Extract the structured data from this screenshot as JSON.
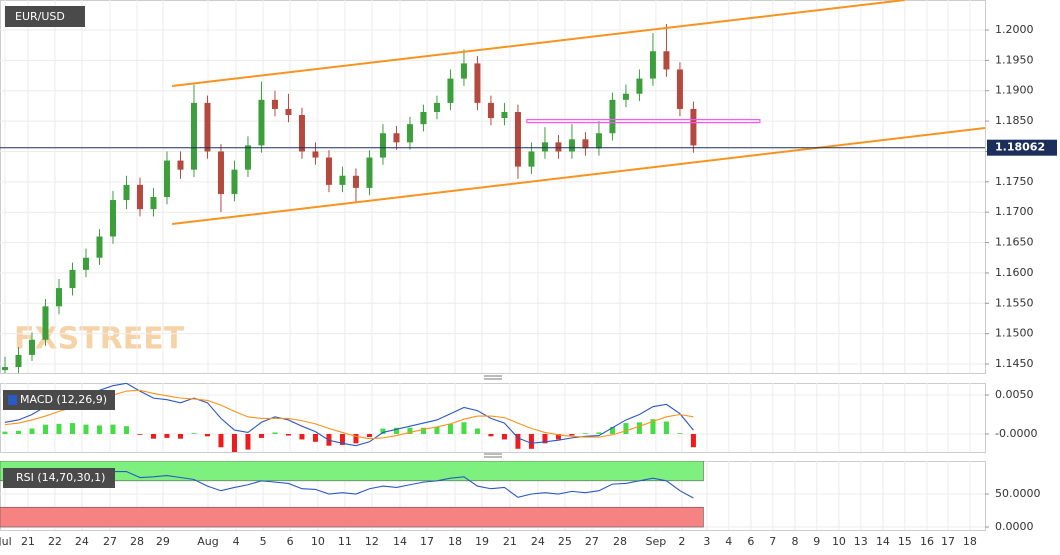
{
  "watermark": "FXSTREET",
  "chart_data": [
    {
      "type": "candlestick",
      "title": "EUR/USD",
      "x": [
        0,
        0.5,
        1,
        1.5,
        2,
        2.5,
        3,
        3.5,
        4,
        4.5,
        5,
        5.5,
        6,
        6.5,
        7,
        7.5,
        8,
        8.5,
        9,
        9.5,
        10,
        10.5,
        11,
        11.5,
        12,
        12.5,
        13,
        13.5,
        14,
        14.5,
        15,
        15.5,
        16,
        16.5,
        17,
        17.5,
        18,
        18.5,
        19,
        19.5,
        20,
        20.5,
        21,
        21.5,
        22,
        22.5,
        23,
        23.5,
        24,
        24.5,
        25,
        25.5
      ],
      "open": [
        1.144,
        1.1445,
        1.1465,
        1.149,
        1.1545,
        1.1575,
        1.1605,
        1.1625,
        1.166,
        1.172,
        1.1745,
        1.1705,
        1.1725,
        1.1785,
        1.177,
        1.188,
        1.18,
        1.173,
        1.177,
        1.181,
        1.1885,
        1.187,
        1.186,
        1.18,
        1.179,
        1.1745,
        1.176,
        1.174,
        1.179,
        1.183,
        1.1815,
        1.1845,
        1.1865,
        1.188,
        1.192,
        1.1945,
        1.188,
        1.1855,
        1.1865,
        1.1775,
        1.18,
        1.1815,
        1.18,
        1.182,
        1.1805,
        1.183,
        1.1885,
        1.1895,
        1.192,
        1.1965,
        1.1935,
        1.187
      ],
      "high": [
        1.1462,
        1.1478,
        1.1502,
        1.1557,
        1.159,
        1.1617,
        1.164,
        1.1672,
        1.1735,
        1.176,
        1.1757,
        1.174,
        1.18,
        1.18,
        1.191,
        1.1892,
        1.1812,
        1.1785,
        1.1825,
        1.1915,
        1.19,
        1.1895,
        1.1872,
        1.1815,
        1.1802,
        1.1775,
        1.1772,
        1.1802,
        1.1845,
        1.1842,
        1.1857,
        1.1877,
        1.1892,
        1.1935,
        1.1968,
        1.1957,
        1.1892,
        1.188,
        1.1877,
        1.1815,
        1.184,
        1.1827,
        1.1845,
        1.1832,
        1.185,
        1.1897,
        1.191,
        1.1935,
        1.1995,
        1.201,
        1.1947,
        1.1882
      ],
      "low": [
        1.143,
        1.1435,
        1.1455,
        1.148,
        1.1532,
        1.1563,
        1.1593,
        1.1613,
        1.1648,
        1.1705,
        1.1693,
        1.1693,
        1.1713,
        1.1755,
        1.1758,
        1.1788,
        1.17,
        1.1718,
        1.1758,
        1.1798,
        1.1858,
        1.1848,
        1.1788,
        1.1778,
        1.1733,
        1.1733,
        1.1715,
        1.1728,
        1.1778,
        1.1803,
        1.1803,
        1.1833,
        1.1853,
        1.1868,
        1.1908,
        1.1868,
        1.1843,
        1.1843,
        1.1755,
        1.1763,
        1.1788,
        1.1788,
        1.1788,
        1.1793,
        1.1793,
        1.1818,
        1.1873,
        1.1883,
        1.1908,
        1.1923,
        1.1858,
        1.1798
      ],
      "close": [
        1.1445,
        1.1465,
        1.149,
        1.1545,
        1.1575,
        1.1605,
        1.1625,
        1.166,
        1.172,
        1.1745,
        1.1705,
        1.1725,
        1.1785,
        1.177,
        1.188,
        1.18,
        1.173,
        1.177,
        1.181,
        1.1885,
        1.187,
        1.186,
        1.18,
        1.179,
        1.1745,
        1.176,
        1.174,
        1.179,
        1.183,
        1.1815,
        1.1845,
        1.1865,
        1.188,
        1.192,
        1.1945,
        1.188,
        1.1855,
        1.1865,
        1.1775,
        1.18,
        1.1815,
        1.18,
        1.182,
        1.1805,
        1.183,
        1.1885,
        1.1895,
        1.192,
        1.1965,
        1.1935,
        1.187,
        1.181
      ],
      "up_color": "#3c9f3c",
      "down_color": "#b5493f",
      "xlim": [
        -0.185,
        36.3
      ],
      "ylim": [
        1.14352,
        1.20494
      ],
      "yticks": [
        {
          "value": 1.2,
          "label": "1.2000"
        },
        {
          "value": 1.195,
          "label": "1.1950"
        },
        {
          "value": 1.19,
          "label": "1.1900"
        },
        {
          "value": 1.185,
          "label": "1.1850"
        },
        {
          "value": 1.18,
          "label": "1.1800"
        },
        {
          "value": 1.175,
          "label": "1.1750"
        },
        {
          "value": 1.17,
          "label": "1.1700"
        },
        {
          "value": 1.165,
          "label": "1.1650"
        },
        {
          "value": 1.16,
          "label": "1.1600"
        },
        {
          "value": 1.155,
          "label": "1.1550"
        },
        {
          "value": 1.15,
          "label": "1.1500"
        },
        {
          "value": 1.145,
          "label": "1.1450"
        }
      ],
      "grid": true,
      "trendlines": [
        {
          "color": "#f7931e",
          "x": [
            6.19,
            33.33
          ],
          "y": [
            1.19078,
            1.20494
          ]
        },
        {
          "color": "#f7931e",
          "x": [
            6.19,
            36.3
          ],
          "y": [
            1.16805,
            1.18386
          ]
        }
      ],
      "zone": {
        "color": "#ff55ff",
        "x": [
          19.33,
          27.96
        ],
        "y": 1.185
      },
      "last_price": {
        "value": 1.18062,
        "label": "1.18062",
        "color": "#1c2e5a"
      }
    },
    {
      "type": "macd",
      "title": "MACD (12,26,9)",
      "x": [
        0,
        0.5,
        1,
        1.5,
        2,
        2.5,
        3,
        3.5,
        4,
        4.5,
        5,
        5.5,
        6,
        6.5,
        7,
        7.5,
        8,
        8.5,
        9,
        9.5,
        10,
        10.5,
        11,
        11.5,
        12,
        12.5,
        13,
        13.5,
        14,
        14.5,
        15,
        15.5,
        16,
        16.5,
        17,
        17.5,
        18,
        18.5,
        19,
        19.5,
        20,
        20.5,
        21,
        21.5,
        22,
        22.5,
        23,
        23.5,
        24,
        24.5,
        25,
        25.5
      ],
      "series": [
        {
          "color": "#2b59c3",
          "values": [
            0.0015,
            0.0018,
            0.0025,
            0.0035,
            0.0042,
            0.0048,
            0.0052,
            0.0056,
            0.0062,
            0.0065,
            0.0055,
            0.0046,
            0.0044,
            0.004,
            0.0046,
            0.004,
            0.002,
            0.0005,
            0.0002,
            0.0015,
            0.0022,
            0.0018,
            0.001,
            0.0003,
            -0.0008,
            -0.0012,
            -0.0015,
            -0.001,
            0.0002,
            0.0006,
            0.001,
            0.0014,
            0.0018,
            0.0026,
            0.0034,
            0.003,
            0.002,
            0.0014,
            -0.0005,
            -0.0012,
            -0.001,
            -0.0008,
            -0.0005,
            -0.0003,
            -0.0002,
            0.0008,
            0.0018,
            0.0025,
            0.0035,
            0.0038,
            0.0026,
            0.0005
          ]
        },
        {
          "color": "#f7931e",
          "values": [
            0.0012,
            0.0014,
            0.0018,
            0.0023,
            0.0029,
            0.0034,
            0.004,
            0.0045,
            0.005,
            0.0055,
            0.0056,
            0.0052,
            0.0049,
            0.0046,
            0.0045,
            0.0043,
            0.0037,
            0.0029,
            0.0022,
            0.002,
            0.002,
            0.002,
            0.0017,
            0.0013,
            0.0007,
            0.0002,
            -0.0003,
            -0.0006,
            -0.0005,
            -0.0002,
            0.0002,
            0.0006,
            0.0009,
            0.0013,
            0.0019,
            0.0023,
            0.0023,
            0.0021,
            0.0014,
            0.0007,
            0.0002,
            -0.0001,
            -0.0003,
            -0.0004,
            -0.0004,
            -0.0001,
            0.0004,
            0.001,
            0.0016,
            0.0022,
            0.0025,
            0.0022
          ]
        }
      ],
      "histogram": [
        0.0003,
        0.0004,
        0.0007,
        0.0012,
        0.0013,
        0.0014,
        0.0012,
        0.0011,
        0.0012,
        0.001,
        -0.0001,
        -0.0006,
        -0.0005,
        -0.0006,
        0.0001,
        -0.0003,
        -0.0017,
        -0.0024,
        -0.002,
        -0.0005,
        0.0002,
        -0.0002,
        -0.0007,
        -0.001,
        -0.0015,
        -0.0014,
        -0.0012,
        -0.0004,
        0.0007,
        0.0008,
        0.0008,
        0.0008,
        0.0009,
        0.0013,
        0.0015,
        0.0007,
        -0.0003,
        -0.0007,
        -0.0019,
        -0.0019,
        -0.0012,
        -0.0007,
        -0.0002,
        0.0001,
        0.0002,
        0.0009,
        0.0014,
        0.0015,
        0.0019,
        0.0016,
        0.0001,
        -0.0017
      ],
      "histogram_colors": [
        "#44dd44",
        "#ee1c1c"
      ],
      "xlim": [
        -0.185,
        36.3
      ],
      "ylim": [
        -0.00231,
        0.00654
      ],
      "yticks": [
        {
          "value": 0.005,
          "label": "0.0050"
        },
        {
          "value": 0,
          "label": "-0.0000"
        }
      ],
      "grid": true
    },
    {
      "type": "rsi",
      "title": "RSI (14,70,30,1)",
      "x": [
        0,
        0.5,
        1,
        1.5,
        2,
        2.5,
        3,
        3.5,
        4,
        4.5,
        5,
        5.5,
        6,
        6.5,
        7,
        7.5,
        8,
        8.5,
        9,
        9.5,
        10,
        10.5,
        11,
        11.5,
        12,
        12.5,
        13,
        13.5,
        14,
        14.5,
        15,
        15.5,
        16,
        16.5,
        17,
        17.5,
        18,
        18.5,
        19,
        19.5,
        20,
        20.5,
        21,
        21.5,
        22,
        22.5,
        23,
        23.5,
        24,
        24.5,
        25,
        25.5
      ],
      "series": [
        {
          "color": "#2b59c3",
          "values": [
            70,
            72,
            74,
            78,
            78,
            80,
            80,
            82,
            84,
            84,
            75,
            76,
            78,
            75,
            72,
            62,
            55,
            60,
            64,
            70,
            68,
            66,
            58,
            57,
            50,
            52,
            50,
            58,
            62,
            60,
            64,
            68,
            70,
            74,
            76,
            62,
            58,
            60,
            45,
            50,
            52,
            50,
            54,
            52,
            55,
            65,
            66,
            70,
            74,
            70,
            55,
            44
          ]
        }
      ],
      "bands": [
        {
          "from": 70,
          "to": 100,
          "color": "#7ef07e"
        },
        {
          "from": 0,
          "to": 30,
          "color": "#f78282"
        }
      ],
      "xlim": [
        -0.185,
        36.3
      ],
      "ylim": [
        -4.5,
        100
      ],
      "yticks": [
        {
          "value": 50,
          "label": "50.0000"
        },
        {
          "value": 0,
          "label": "0.0000"
        }
      ],
      "grid": true,
      "xticks": [
        {
          "value": 0,
          "label": "Jul"
        },
        {
          "value": 0.85,
          "label": "21"
        },
        {
          "value": 1.85,
          "label": "22"
        },
        {
          "value": 2.85,
          "label": "24"
        },
        {
          "value": 3.89,
          "label": "27"
        },
        {
          "value": 4.89,
          "label": "28"
        },
        {
          "value": 5.85,
          "label": "29"
        },
        {
          "value": 7.52,
          "label": "Aug"
        },
        {
          "value": 8.56,
          "label": "4"
        },
        {
          "value": 9.56,
          "label": "5"
        },
        {
          "value": 10.56,
          "label": "6"
        },
        {
          "value": 11.59,
          "label": "10"
        },
        {
          "value": 12.59,
          "label": "11"
        },
        {
          "value": 13.59,
          "label": "12"
        },
        {
          "value": 14.63,
          "label": "14"
        },
        {
          "value": 15.63,
          "label": "17"
        },
        {
          "value": 16.67,
          "label": "18"
        },
        {
          "value": 17.67,
          "label": "19"
        },
        {
          "value": 18.7,
          "label": "21"
        },
        {
          "value": 19.74,
          "label": "24"
        },
        {
          "value": 20.74,
          "label": "25"
        },
        {
          "value": 21.74,
          "label": "27"
        },
        {
          "value": 22.78,
          "label": "28"
        },
        {
          "value": 24.11,
          "label": "Sep"
        },
        {
          "value": 25.07,
          "label": "2"
        },
        {
          "value": 26,
          "label": "3"
        },
        {
          "value": 26.81,
          "label": "4"
        },
        {
          "value": 27.63,
          "label": "6"
        },
        {
          "value": 28.44,
          "label": "7"
        },
        {
          "value": 29.26,
          "label": "8"
        },
        {
          "value": 30.07,
          "label": "9"
        },
        {
          "value": 30.89,
          "label": "10"
        },
        {
          "value": 31.7,
          "label": "13"
        },
        {
          "value": 32.52,
          "label": "14"
        },
        {
          "value": 33.33,
          "label": "15"
        },
        {
          "value": 34.15,
          "label": "16"
        },
        {
          "value": 34.93,
          "label": "17"
        },
        {
          "value": 35.74,
          "label": "18"
        }
      ]
    }
  ]
}
